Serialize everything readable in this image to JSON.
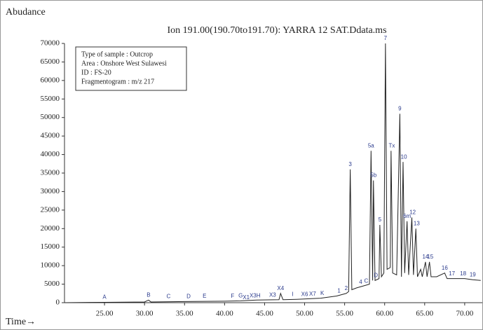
{
  "chart_data": {
    "type": "line",
    "title": "Ion 191.00(190.70to191.70): YARRA 12 SAT.Ddata.ms",
    "y_label": "Abudance",
    "x_label": "Time→",
    "info_box": [
      "Type of sample : Outcrop",
      "Area : Onshore West Sulawesi",
      "ID : FS-20",
      "Fragmentogram : m/z 217"
    ],
    "xlim": [
      20,
      72.2
    ],
    "ylim": [
      0,
      70000
    ],
    "xticks": [
      {
        "value": 25,
        "label": "25.00"
      },
      {
        "value": 30,
        "label": "30.00"
      },
      {
        "value": 35,
        "label": "35.00"
      },
      {
        "value": 40,
        "label": "40.00"
      },
      {
        "value": 45,
        "label": "45.00"
      },
      {
        "value": 50,
        "label": "50.00"
      },
      {
        "value": 55,
        "label": "55.00"
      },
      {
        "value": 60,
        "label": "60.00"
      },
      {
        "value": 65,
        "label": "65.00"
      },
      {
        "value": 70,
        "label": "70.00"
      }
    ],
    "yticks": [
      0,
      5000,
      10000,
      15000,
      20000,
      25000,
      30000,
      35000,
      40000,
      45000,
      50000,
      55000,
      60000,
      65000,
      70000
    ],
    "x": [
      20,
      25,
      30,
      30.5,
      30.8,
      35,
      40,
      42,
      44,
      46.8,
      47,
      47.3,
      49,
      52,
      54,
      55.2,
      55.5,
      55.7,
      55.9,
      56.5,
      57.3,
      58.1,
      58.3,
      58.5,
      58.6,
      58.8,
      59.3,
      59.4,
      59.6,
      59.9,
      60.1,
      60.3,
      60.7,
      60.8,
      61,
      61.5,
      61.9,
      62.1,
      62.3,
      62.5,
      62.8,
      63,
      63.4,
      63.6,
      63.9,
      64.1,
      64.5,
      64.7,
      65.1,
      65.3,
      65.6,
      65.8,
      66.5,
      67.5,
      67.8,
      69,
      70,
      71,
      72
    ],
    "series": [
      {
        "color": "#222222",
        "values": [
          0,
          100,
          200,
          700,
          200,
          300,
          400,
          500,
          700,
          800,
          2500,
          800,
          900,
          1200,
          1800,
          2500,
          3000,
          36000,
          3500,
          4000,
          4500,
          5000,
          41000,
          6000,
          33000,
          6000,
          6500,
          21000,
          7000,
          8000,
          70000,
          9000,
          9500,
          41000,
          8000,
          7500,
          51000,
          7000,
          38000,
          8000,
          22000,
          7500,
          23000,
          7500,
          20000,
          7000,
          9000,
          7000,
          11000,
          7000,
          11000,
          7000,
          7000,
          8000,
          6500,
          6500,
          6500,
          6200,
          6000
        ]
      }
    ],
    "peak_labels": [
      {
        "label": "A",
        "x": 25,
        "y": 100
      },
      {
        "label": "B",
        "x": 30.5,
        "y": 700
      },
      {
        "label": "C",
        "x": 33,
        "y": 300
      },
      {
        "label": "D",
        "x": 35.5,
        "y": 300
      },
      {
        "label": "E",
        "x": 37.5,
        "y": 400
      },
      {
        "label": "F",
        "x": 41,
        "y": 400
      },
      {
        "label": "G",
        "x": 42,
        "y": 500
      },
      {
        "label": "X1",
        "x": 42.7,
        "y": 0
      },
      {
        "label": "X3H",
        "x": 43.8,
        "y": 500
      },
      {
        "label": "X3",
        "x": 46,
        "y": 700
      },
      {
        "label": "X4",
        "x": 47,
        "y": 2500
      },
      {
        "label": "I",
        "x": 48.5,
        "y": 900
      },
      {
        "label": "X6",
        "x": 50,
        "y": 900
      },
      {
        "label": "X7",
        "x": 51,
        "y": 1000
      },
      {
        "label": "K",
        "x": 52.2,
        "y": 1200
      },
      {
        "label": "1",
        "x": 54.3,
        "y": 1800
      },
      {
        "label": "2",
        "x": 55.2,
        "y": 2500
      },
      {
        "label": "3",
        "x": 55.7,
        "y": 36000
      },
      {
        "label": "4",
        "x": 57,
        "y": 4200
      },
      {
        "label": "C",
        "x": 57.7,
        "y": 4500
      },
      {
        "label": "D",
        "x": 58.9,
        "y": 6000
      },
      {
        "label": "5a",
        "x": 58.3,
        "y": 41000
      },
      {
        "label": "5b",
        "x": 58.6,
        "y": 33000
      },
      {
        "label": "5",
        "x": 59.4,
        "y": 21000
      },
      {
        "label": "7",
        "x": 60.1,
        "y": 70000
      },
      {
        "label": "Tx",
        "x": 60.9,
        "y": 41000
      },
      {
        "label": "9",
        "x": 61.9,
        "y": 51000
      },
      {
        "label": "10",
        "x": 62.4,
        "y": 38000
      },
      {
        "label": "6m",
        "x": 62.8,
        "y": 22000
      },
      {
        "label": "12",
        "x": 63.5,
        "y": 23000
      },
      {
        "label": "13",
        "x": 64.0,
        "y": 20000
      },
      {
        "label": "14",
        "x": 65.1,
        "y": 11000
      },
      {
        "label": "15",
        "x": 65.7,
        "y": 11000
      },
      {
        "label": "16",
        "x": 67.5,
        "y": 8000
      },
      {
        "label": "17",
        "x": 68.4,
        "y": 6500
      },
      {
        "label": "18",
        "x": 69.8,
        "y": 6500
      },
      {
        "label": "19",
        "x": 71.0,
        "y": 6200
      }
    ]
  }
}
